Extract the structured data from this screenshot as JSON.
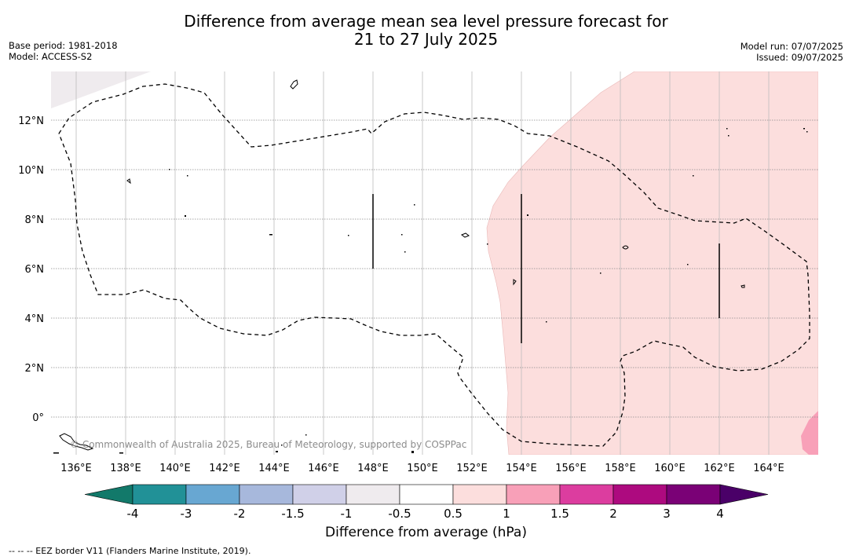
{
  "header": {
    "title_line1": "Difference from average mean sea level pressure forecast for",
    "title_line2": "21 to 27 July 2025",
    "base_period": "Base period: 1981-2018",
    "model": "Model: ACCESS-S2",
    "model_run": "Model run: 07/07/2025",
    "issued": "Issued: 09/07/2025"
  },
  "map": {
    "lon_labels": [
      "136°E",
      "138°E",
      "140°E",
      "142°E",
      "144°E",
      "146°E",
      "148°E",
      "150°E",
      "152°E",
      "154°E",
      "156°E",
      "158°E",
      "160°E",
      "162°E",
      "164°E"
    ],
    "lat_labels": [
      "12°N",
      "10°N",
      "8°N",
      "6°N",
      "4°N",
      "2°N",
      "0°"
    ],
    "copyright": "© Commonwealth of Australia 2025, Bureau of Meteorology, supported by COSPPac",
    "anomaly_fill_color": "#fcdedd",
    "gray_fill_color": "#efebee"
  },
  "colorbar": {
    "tick_labels": [
      "-4",
      "-3",
      "-2",
      "-1.5",
      "-1",
      "-0.5",
      "0.5",
      "1",
      "1.5",
      "2",
      "3",
      "4"
    ],
    "colors": [
      "#12796a",
      "#219197",
      "#68a7d2",
      "#a7b8dc",
      "#d0d0e8",
      "#efebee",
      "#ffffff",
      "#fcdedd",
      "#f8a0b8",
      "#dc3d9f",
      "#ad0a7f",
      "#7a0176",
      "#4a0068"
    ],
    "title": "Difference from average (hPa)"
  },
  "footnote": "-- -- -- EEZ border V11 (Flanders Marine Institute, 2019)."
}
